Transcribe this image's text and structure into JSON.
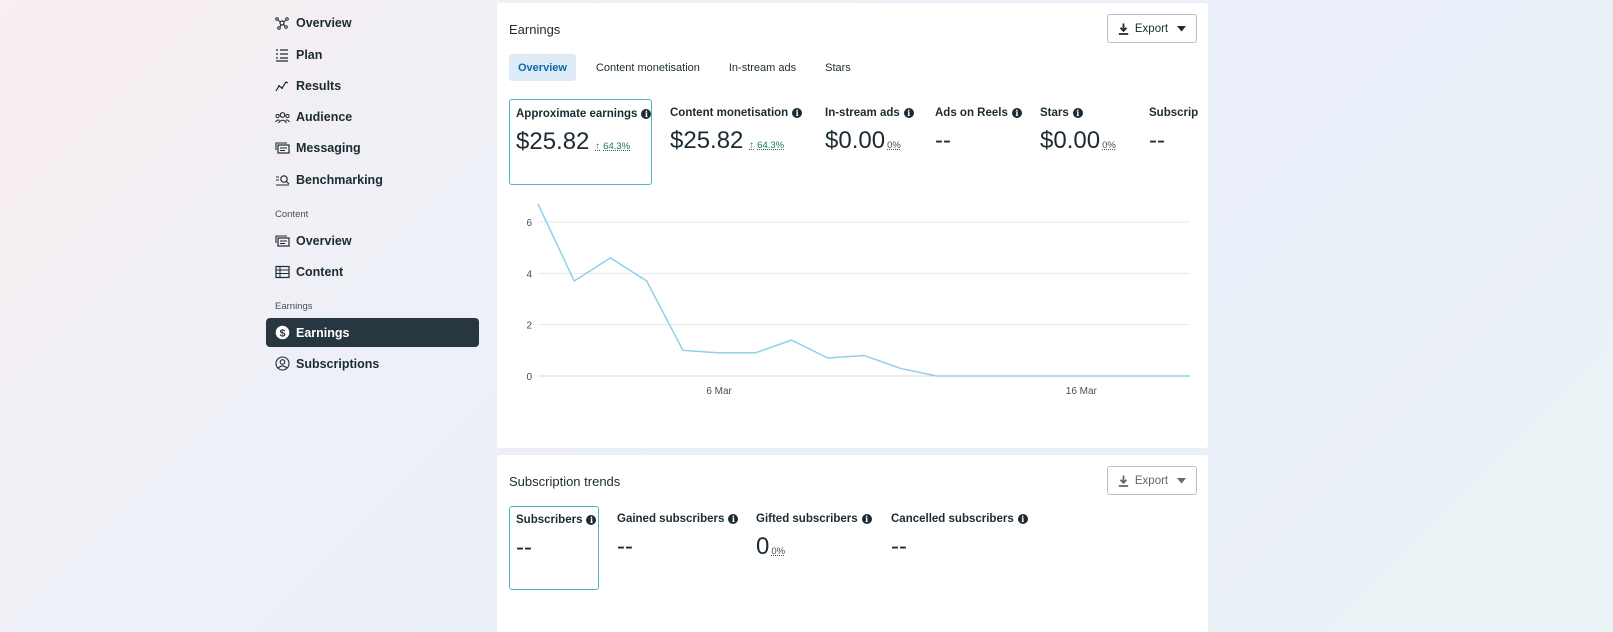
{
  "sidebar": {
    "items_top": [
      {
        "label": "Overview",
        "icon": "network-icon"
      },
      {
        "label": "Plan",
        "icon": "list-icon"
      },
      {
        "label": "Results",
        "icon": "trend-icon"
      },
      {
        "label": "Audience",
        "icon": "people-icon"
      },
      {
        "label": "Messaging",
        "icon": "message-cards-icon"
      },
      {
        "label": "Benchmarking",
        "icon": "benchmark-search-icon"
      }
    ],
    "content_label": "Content",
    "items_content": [
      {
        "label": "Overview",
        "icon": "cards-icon"
      },
      {
        "label": "Content",
        "icon": "table-icon"
      }
    ],
    "earnings_label": "Earnings",
    "items_earnings": [
      {
        "label": "Earnings",
        "icon": "dollar-circle-icon",
        "active": true
      },
      {
        "label": "Subscriptions",
        "icon": "person-circle-icon"
      }
    ]
  },
  "earnings_card": {
    "title": "Earnings",
    "export_label": "Export",
    "tabs": [
      "Overview",
      "Content monetisation",
      "In-stream ads",
      "Stars"
    ],
    "active_tab": "Overview",
    "metrics": [
      {
        "label": "Approximate earnings",
        "value": "$25.82",
        "delta": "64.3%"
      },
      {
        "label": "Content monetisation",
        "value": "$25.82",
        "delta": "64.3%"
      },
      {
        "label": "In-stream ads",
        "value": "$0.00",
        "pct": "0%"
      },
      {
        "label": "Ads on Reels",
        "value": "--"
      },
      {
        "label": "Stars",
        "value": "$0.00",
        "pct": "0%"
      },
      {
        "label": "Subscrip",
        "value": "--"
      }
    ]
  },
  "chart_data": {
    "type": "line",
    "x": [
      "1 Mar",
      "2 Mar",
      "3 Mar",
      "4 Mar",
      "5 Mar",
      "6 Mar",
      "7 Mar",
      "8 Mar",
      "9 Mar",
      "10 Mar",
      "11 Mar",
      "12 Mar",
      "13 Mar",
      "14 Mar",
      "15 Mar",
      "16 Mar",
      "17 Mar",
      "18 Mar",
      "19 Mar"
    ],
    "x_tick_labels": [
      "6 Mar",
      "16 Mar"
    ],
    "series": [
      {
        "values": [
          6.7,
          3.7,
          4.6,
          3.7,
          1.0,
          0.9,
          0.9,
          1.4,
          0.7,
          0.8,
          0.3,
          0.0,
          0.0,
          0.0,
          0.0,
          0.0,
          0.0,
          0.0,
          0.0
        ]
      }
    ],
    "yticks": [
      0,
      2,
      4,
      6
    ],
    "ylim": [
      0,
      6.7
    ],
    "grid": true,
    "line_color": "#8fd0ea"
  },
  "subs_card": {
    "title": "Subscription trends",
    "export_label": "Export",
    "metrics": [
      {
        "label": "Subscribers",
        "value": "--"
      },
      {
        "label": "Gained subscribers",
        "value": "--"
      },
      {
        "label": "Gifted subscribers",
        "value": "0",
        "pct": "0%"
      },
      {
        "label": "Cancelled subscribers",
        "value": "--"
      }
    ]
  },
  "colors": {
    "accent": "#0c6aa6",
    "active_nav_bg": "#283640",
    "positive": "#1f7a4d",
    "selected_border": "#4fb3c6"
  }
}
